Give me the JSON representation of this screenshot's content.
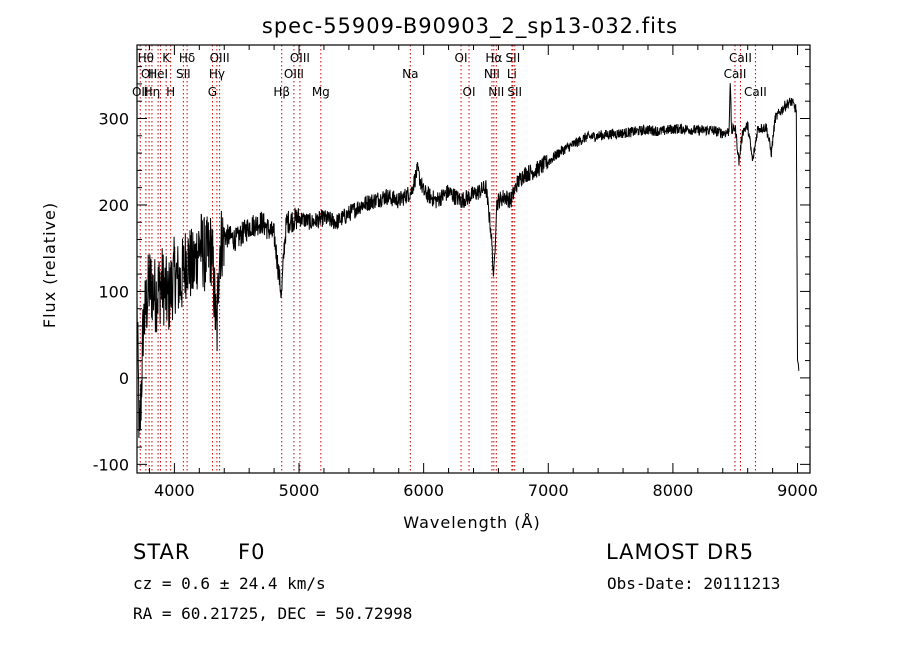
{
  "chart_data": {
    "type": "line",
    "title": "spec-55909-B90903_2_sp13-032.fits",
    "xlabel": "Wavelength (Å)",
    "ylabel": "Flux (relative)",
    "xlim": [
      3700,
      9100
    ],
    "ylim": [
      -110,
      385
    ],
    "xticks": [
      4000,
      5000,
      6000,
      7000,
      8000,
      9000
    ],
    "yticks": [
      -100,
      0,
      100,
      200,
      300
    ],
    "grid": false,
    "line_color": "#000000",
    "marker_color": "#cc0000",
    "spectrum_anchors": [
      [
        3700,
        80
      ],
      [
        3720,
        -80
      ],
      [
        3750,
        60
      ],
      [
        3800,
        110
      ],
      [
        3850,
        95
      ],
      [
        3900,
        110
      ],
      [
        3950,
        90
      ],
      [
        4000,
        120
      ],
      [
        4050,
        110
      ],
      [
        4100,
        140
      ],
      [
        4150,
        125
      ],
      [
        4200,
        155
      ],
      [
        4250,
        140
      ],
      [
        4300,
        150
      ],
      [
        4340,
        45
      ],
      [
        4360,
        150
      ],
      [
        4400,
        165
      ],
      [
        4500,
        160
      ],
      [
        4600,
        175
      ],
      [
        4700,
        180
      ],
      [
        4800,
        165
      ],
      [
        4860,
        95
      ],
      [
        4880,
        150
      ],
      [
        4900,
        180
      ],
      [
        5000,
        185
      ],
      [
        5100,
        180
      ],
      [
        5200,
        185
      ],
      [
        5300,
        180
      ],
      [
        5400,
        190
      ],
      [
        5500,
        200
      ],
      [
        5600,
        205
      ],
      [
        5700,
        210
      ],
      [
        5800,
        205
      ],
      [
        5900,
        215
      ],
      [
        5950,
        240
      ],
      [
        6000,
        215
      ],
      [
        6100,
        205
      ],
      [
        6200,
        215
      ],
      [
        6300,
        205
      ],
      [
        6400,
        212
      ],
      [
        6500,
        220
      ],
      [
        6540,
        170
      ],
      [
        6563,
        115
      ],
      [
        6585,
        200
      ],
      [
        6600,
        205
      ],
      [
        6650,
        210
      ],
      [
        6700,
        205
      ],
      [
        6750,
        225
      ],
      [
        6800,
        235
      ],
      [
        6900,
        240
      ],
      [
        7000,
        250
      ],
      [
        7100,
        262
      ],
      [
        7200,
        270
      ],
      [
        7300,
        278
      ],
      [
        7400,
        280
      ],
      [
        7500,
        282
      ],
      [
        7600,
        283
      ],
      [
        7700,
        285
      ],
      [
        7800,
        287
      ],
      [
        7900,
        285
      ],
      [
        8000,
        288
      ],
      [
        8100,
        288
      ],
      [
        8200,
        286
      ],
      [
        8300,
        287
      ],
      [
        8400,
        283
      ],
      [
        8450,
        285
      ],
      [
        8460,
        345
      ],
      [
        8470,
        285
      ],
      [
        8500,
        290
      ],
      [
        8530,
        250
      ],
      [
        8560,
        285
      ],
      [
        8600,
        292
      ],
      [
        8640,
        250
      ],
      [
        8680,
        288
      ],
      [
        8750,
        290
      ],
      [
        8790,
        260
      ],
      [
        8820,
        300
      ],
      [
        8900,
        315
      ],
      [
        8950,
        320
      ],
      [
        8990,
        310
      ],
      [
        9000,
        20
      ],
      [
        9010,
        10
      ]
    ],
    "line_markers": [
      {
        "wavelength": 3726,
        "label": "OII",
        "row": 3
      },
      {
        "wavelength": 3771,
        "label": "Hθ",
        "row": 1
      },
      {
        "wavelength": 3797,
        "label": "OII",
        "row": 2
      },
      {
        "wavelength": 3820,
        "label": "Hη",
        "row": 3
      },
      {
        "wavelength": 3869,
        "label": "HeI",
        "row": 2
      },
      {
        "wavelength": 3889,
        "label": "",
        "row": 0
      },
      {
        "wavelength": 3934,
        "label": "K",
        "row": 1
      },
      {
        "wavelength": 3970,
        "label": "H",
        "row": 3
      },
      {
        "wavelength": 4072,
        "label": "SII",
        "row": 2
      },
      {
        "wavelength": 4102,
        "label": "Hδ",
        "row": 1
      },
      {
        "wavelength": 4305,
        "label": "G",
        "row": 3
      },
      {
        "wavelength": 4341,
        "label": "Hγ",
        "row": 2
      },
      {
        "wavelength": 4363,
        "label": "OIII",
        "row": 1
      },
      {
        "wavelength": 4861,
        "label": "Hβ",
        "row": 3
      },
      {
        "wavelength": 4959,
        "label": "OIII",
        "row": 2
      },
      {
        "wavelength": 5007,
        "label": "OIII",
        "row": 1
      },
      {
        "wavelength": 5175,
        "label": "Mg",
        "row": 3
      },
      {
        "wavelength": 5893,
        "label": "Na",
        "row": 2
      },
      {
        "wavelength": 6300,
        "label": "OI",
        "row": 1
      },
      {
        "wavelength": 6364,
        "label": "OI",
        "row": 3
      },
      {
        "wavelength": 6548,
        "label": "NII",
        "row": 2
      },
      {
        "wavelength": 6563,
        "label": "Hα",
        "row": 1
      },
      {
        "wavelength": 6583,
        "label": "NII",
        "row": 3
      },
      {
        "wavelength": 6708,
        "label": "Li",
        "row": 2
      },
      {
        "wavelength": 6716,
        "label": "SII",
        "row": 1
      },
      {
        "wavelength": 6731,
        "label": "SII",
        "row": 3
      },
      {
        "wavelength": 8498,
        "label": "CaII",
        "row": 2
      },
      {
        "wavelength": 8542,
        "label": "CaII",
        "row": 1
      },
      {
        "wavelength": 8662,
        "label": "CaII",
        "row": 3
      }
    ]
  },
  "info": {
    "object_class": "STAR",
    "subclass": "F0",
    "redshift": "cz = 0.6 ± 24.4 km/s",
    "coords": "RA =  60.21725, DEC =  50.72998",
    "survey": "LAMOST DR5",
    "obs_date": "Obs-Date: 20111213"
  }
}
